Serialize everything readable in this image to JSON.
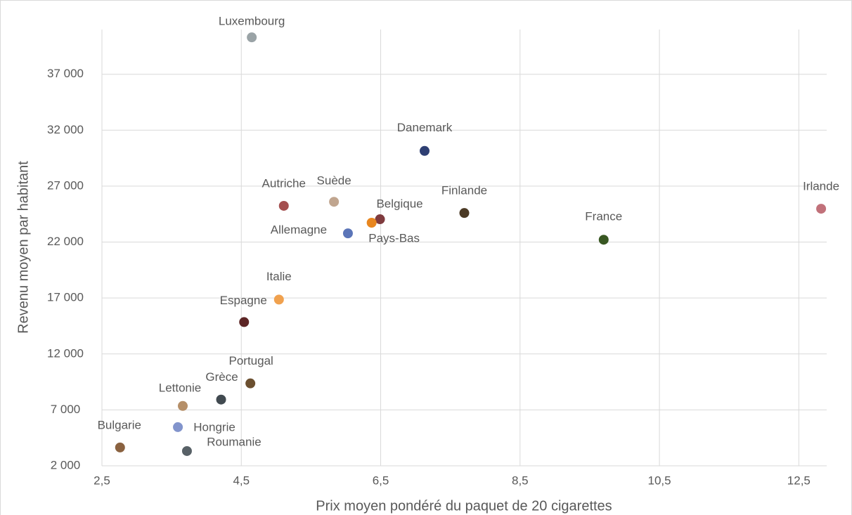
{
  "chart_data": {
    "type": "scatter",
    "x_label": "Prix moyen pondéré du paquet de 20 cigarettes",
    "y_label": "Revenu moyen par habitant",
    "point_labels": [
      "Luxembourg",
      "Danemark",
      "Autriche",
      "Suède",
      "Belgique",
      "Pays-Bas",
      "Allemagne",
      "Finlande",
      "France",
      "Irlande",
      "Italie",
      "Espagne",
      "Portugal",
      "Grèce",
      "Lettonie",
      "Hongrie",
      "Bulgarie",
      "Roumanie"
    ],
    "x": [
      4.65,
      7.13,
      5.11,
      5.83,
      6.49,
      6.37,
      6.03,
      7.7,
      9.7,
      12.82,
      5.04,
      4.54,
      4.63,
      4.21,
      3.66,
      3.59,
      2.76,
      3.72
    ],
    "values": [
      40300,
      30150,
      25240,
      25600,
      24040,
      23730,
      22780,
      24600,
      22210,
      24980,
      16860,
      14850,
      9370,
      7920,
      7350,
      5460,
      3640,
      3320
    ],
    "colors": [
      "#9aa3a6",
      "#2e3f73",
      "#a44f4f",
      "#c0a58f",
      "#7f3b3e",
      "#e8861f",
      "#5b75b8",
      "#4b3a25",
      "#385722",
      "#c1717a",
      "#f0a14e",
      "#5c2525",
      "#6b4f2f",
      "#414a50",
      "#b58f68",
      "#8294cc",
      "#8a6240",
      "#586167"
    ],
    "xlim": [
      2.5,
      12.9
    ],
    "xticks": [
      {
        "value": 2.5,
        "label": "2,5"
      },
      {
        "value": 4.5,
        "label": "4,5"
      },
      {
        "value": 6.5,
        "label": "6,5"
      },
      {
        "value": 8.5,
        "label": "8,5"
      },
      {
        "value": 10.5,
        "label": "10,5"
      },
      {
        "value": 12.5,
        "label": "12,5"
      }
    ],
    "ylim": [
      2000,
      41000
    ],
    "yticks": [
      {
        "value": 2000,
        "label": "2 000"
      },
      {
        "value": 7000,
        "label": "7 000"
      },
      {
        "value": 12000,
        "label": "12 000"
      },
      {
        "value": 17000,
        "label": "17 000"
      },
      {
        "value": 22000,
        "label": "22 000"
      },
      {
        "value": 27000,
        "label": "27 000"
      },
      {
        "value": 32000,
        "label": "32 000"
      },
      {
        "value": 37000,
        "label": "37 000"
      }
    ],
    "grid": true
  }
}
